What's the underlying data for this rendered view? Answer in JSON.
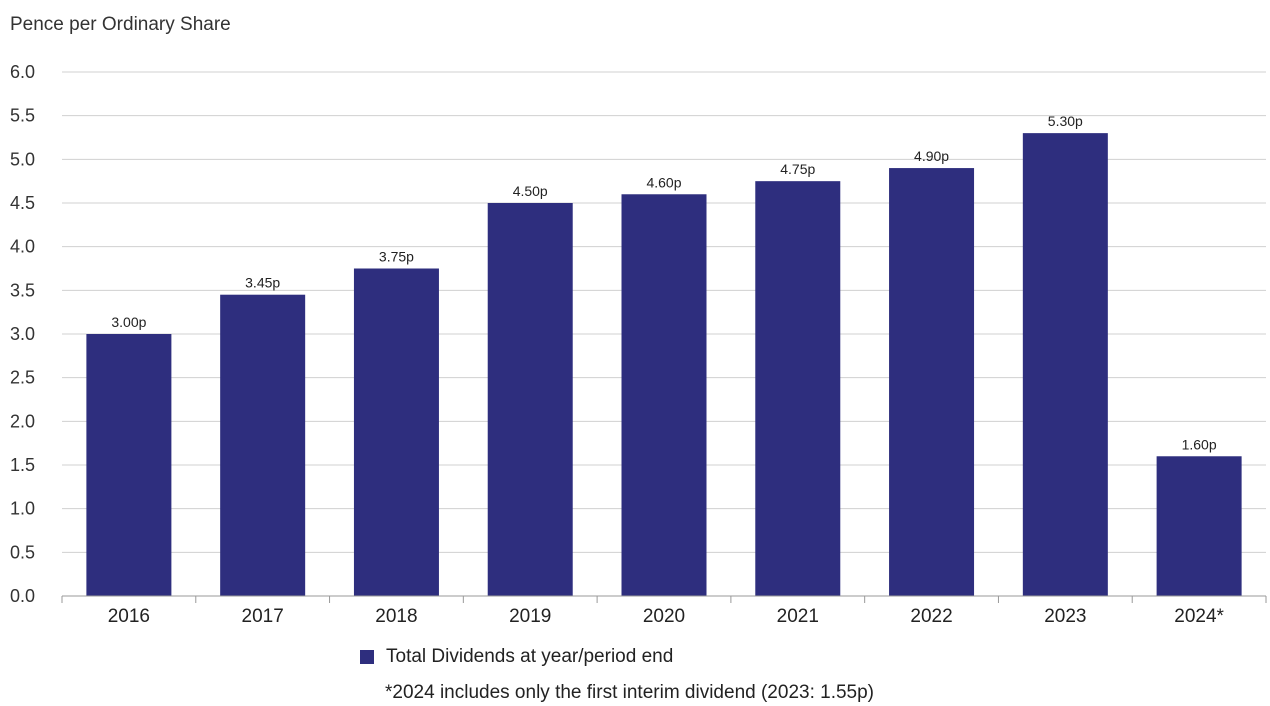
{
  "chart_data": {
    "type": "bar",
    "ylabel": "Pence per Ordinary Share",
    "categories": [
      "2016",
      "2017",
      "2018",
      "2019",
      "2020",
      "2021",
      "2022",
      "2023",
      "2024*"
    ],
    "series": [
      {
        "name": "Total Dividends at year/period end",
        "values": [
          3.0,
          3.45,
          3.75,
          4.5,
          4.6,
          4.75,
          4.9,
          5.3,
          1.6
        ],
        "labels": [
          "3.00p",
          "3.45p",
          "3.75p",
          "4.50p",
          "4.60p",
          "4.75p",
          "4.90p",
          "5.30p",
          "1.60p"
        ],
        "color": "#2e2e7e"
      }
    ],
    "ylim": [
      0,
      6
    ],
    "yticks": [
      "0.0",
      "0.5",
      "1.0",
      "1.5",
      "2.0",
      "2.5",
      "3.0",
      "3.5",
      "4.0",
      "4.5",
      "5.0",
      "5.5",
      "6.0"
    ],
    "grid": true,
    "gridColor": "#d0d0d0",
    "legend_position": "bottom-center"
  },
  "legend": {
    "label": "Total Dividends at year/period end",
    "color": "#2e2e7e"
  },
  "footnote": "*2024 includes only the first interim dividend (2023: 1.55p)"
}
